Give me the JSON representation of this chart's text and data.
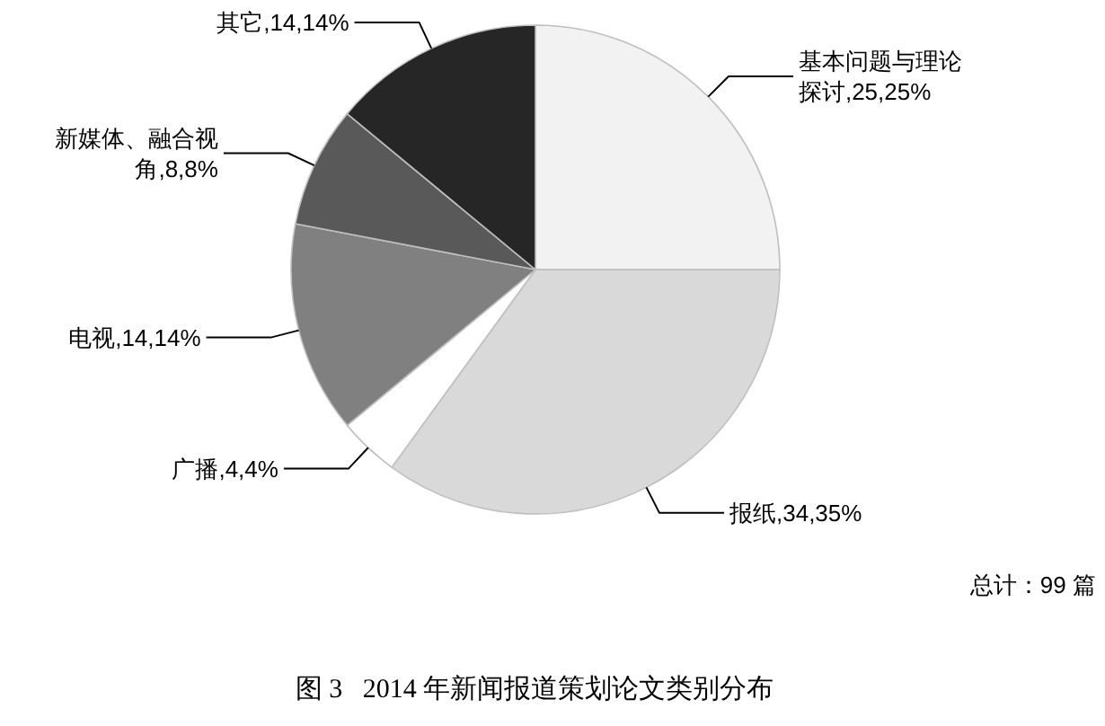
{
  "chart_data": {
    "type": "pie",
    "title": "图 3   2014 年新闻报道策划论文类别分布",
    "categories": [
      "基本问题与理论探讨,25",
      "报纸,34",
      "广播,4",
      "电视,14",
      "新媒体、融合视角,8",
      "其它,14"
    ],
    "values": [
      25,
      35,
      4,
      14,
      8,
      14
    ],
    "value_labels": [
      "25%",
      "35%",
      "4%",
      "14%",
      "8%",
      "14%"
    ],
    "colors": [
      "#f2f2f2",
      "#d9d9d9",
      "#ffffff",
      "#808080",
      "#595959",
      "#262626"
    ],
    "annotations": [
      "总计：99 篇"
    ]
  }
}
